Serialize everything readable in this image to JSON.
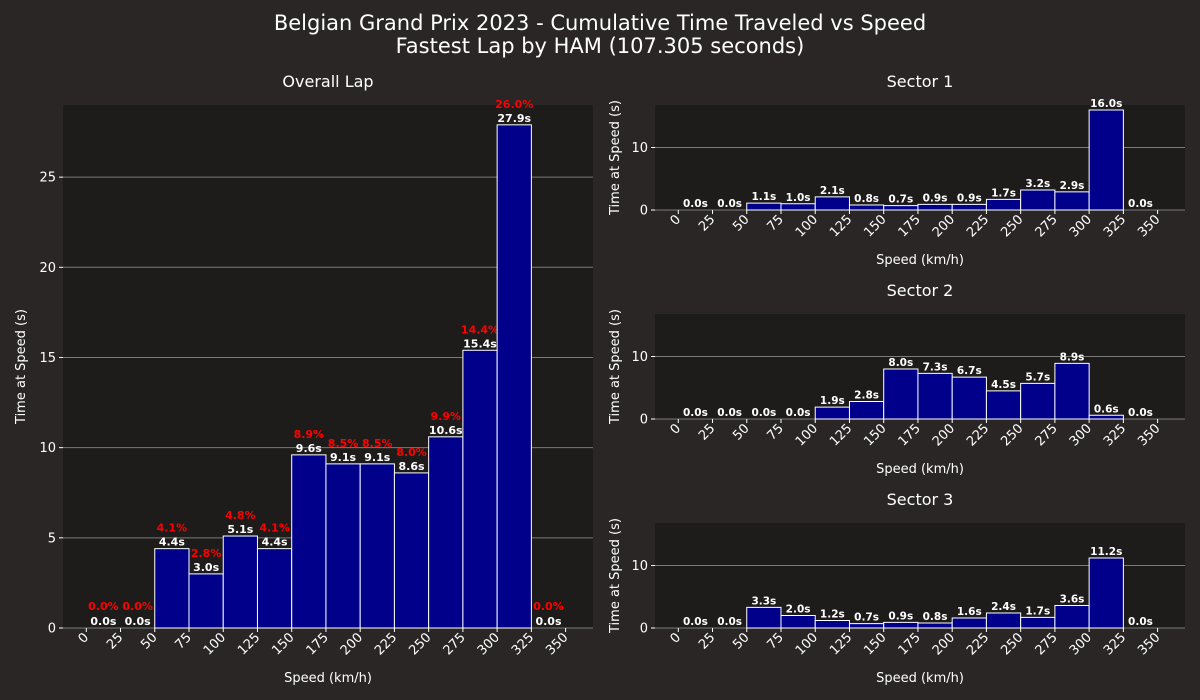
{
  "title": "Belgian Grand Prix 2023 - Cumulative Time Traveled vs Speed",
  "subtitle": "Fastest Lap by HAM (107.305 seconds)",
  "colors": {
    "background": "#292625",
    "plot_background": "#1e1c1b",
    "bar_fill": "#00008b",
    "bar_edge": "#ffffff",
    "text": "#ffffff",
    "percent_label": "#ff0000",
    "grid": "#7a7a7a"
  },
  "chart_data": [
    {
      "type": "bar",
      "title": "Overall Lap",
      "xlabel": "Speed (km/h)",
      "ylabel": "Time at Speed (s)",
      "bin_edges": [
        0,
        25,
        50,
        75,
        100,
        125,
        150,
        175,
        200,
        225,
        250,
        275,
        300,
        325,
        350
      ],
      "xticks": [
        "0",
        "25",
        "50",
        "75",
        "100",
        "125",
        "150",
        "175",
        "200",
        "225",
        "250",
        "275",
        "300",
        "325",
        "350"
      ],
      "xlim": [
        -17,
        370
      ],
      "ylim": [
        0,
        29
      ],
      "yticks": [
        0,
        5,
        10,
        15,
        20,
        25
      ],
      "grid": "horizontal",
      "values": [
        0,
        0,
        4.4,
        3.0,
        5.1,
        4.4,
        9.6,
        9.1,
        9.1,
        8.6,
        10.6,
        15.4,
        27.9,
        0
      ],
      "labels": [
        "0.0s",
        "0.0s",
        "4.4s",
        "3.0s",
        "5.1s",
        "4.4s",
        "9.6s",
        "9.1s",
        "9.1s",
        "8.6s",
        "10.6s",
        "15.4s",
        "27.9s",
        "0.0s"
      ],
      "percent_labels": [
        "0.0%",
        "0.0%",
        "4.1%",
        "2.8%",
        "4.8%",
        "4.1%",
        "8.9%",
        "8.5%",
        "8.5%",
        "8.0%",
        "9.9%",
        "14.4%",
        "26.0%",
        "0.0%"
      ]
    },
    {
      "type": "bar",
      "title": "Sector 1",
      "xlabel": "Speed (km/h)",
      "ylabel": "Time at Speed (s)",
      "bin_edges": [
        0,
        25,
        50,
        75,
        100,
        125,
        150,
        175,
        200,
        225,
        250,
        275,
        300,
        325,
        350
      ],
      "xticks": [
        "0",
        "25",
        "50",
        "75",
        "100",
        "125",
        "150",
        "175",
        "200",
        "225",
        "250",
        "275",
        "300",
        "325",
        "350"
      ],
      "xlim": [
        -17,
        370
      ],
      "ylim": [
        0,
        16.8
      ],
      "yticks": [
        0,
        10
      ],
      "grid": "horizontal",
      "values": [
        0,
        0,
        1.1,
        1.0,
        2.1,
        0.8,
        0.7,
        0.9,
        0.9,
        1.7,
        3.2,
        2.9,
        16.0,
        0
      ],
      "labels": [
        "0.0s",
        "0.0s",
        "1.1s",
        "1.0s",
        "2.1s",
        "0.8s",
        "0.7s",
        "0.9s",
        "0.9s",
        "1.7s",
        "3.2s",
        "2.9s",
        "16.0s",
        "0.0s"
      ]
    },
    {
      "type": "bar",
      "title": "Sector 2",
      "xlabel": "Speed (km/h)",
      "ylabel": "Time at Speed (s)",
      "bin_edges": [
        0,
        25,
        50,
        75,
        100,
        125,
        150,
        175,
        200,
        225,
        250,
        275,
        300,
        325,
        350
      ],
      "xticks": [
        "0",
        "25",
        "50",
        "75",
        "100",
        "125",
        "150",
        "175",
        "200",
        "225",
        "250",
        "275",
        "300",
        "325",
        "350"
      ],
      "xlim": [
        -17,
        370
      ],
      "ylim": [
        0,
        16.8
      ],
      "yticks": [
        0,
        10
      ],
      "grid": "horizontal",
      "values": [
        0,
        0,
        0,
        0,
        1.9,
        2.8,
        8.0,
        7.3,
        6.7,
        4.5,
        5.7,
        8.9,
        0.6,
        0
      ],
      "labels": [
        "0.0s",
        "0.0s",
        "0.0s",
        "0.0s",
        "1.9s",
        "2.8s",
        "8.0s",
        "7.3s",
        "6.7s",
        "4.5s",
        "5.7s",
        "8.9s",
        "0.6s",
        "0.0s"
      ]
    },
    {
      "type": "bar",
      "title": "Sector 3",
      "xlabel": "Speed (km/h)",
      "ylabel": "Time at Speed (s)",
      "bin_edges": [
        0,
        25,
        50,
        75,
        100,
        125,
        150,
        175,
        200,
        225,
        250,
        275,
        300,
        325,
        350
      ],
      "xticks": [
        "0",
        "25",
        "50",
        "75",
        "100",
        "125",
        "150",
        "175",
        "200",
        "225",
        "250",
        "275",
        "300",
        "325",
        "350"
      ],
      "xlim": [
        -17,
        370
      ],
      "ylim": [
        0,
        16.8
      ],
      "yticks": [
        0,
        10
      ],
      "grid": "horizontal",
      "values": [
        0,
        0,
        3.3,
        2.0,
        1.2,
        0.7,
        0.9,
        0.8,
        1.6,
        2.4,
        1.7,
        3.6,
        11.2,
        0
      ],
      "labels": [
        "0.0s",
        "0.0s",
        "3.3s",
        "2.0s",
        "1.2s",
        "0.7s",
        "0.9s",
        "0.8s",
        "1.6s",
        "2.4s",
        "1.7s",
        "3.6s",
        "11.2s",
        "0.0s"
      ]
    }
  ]
}
